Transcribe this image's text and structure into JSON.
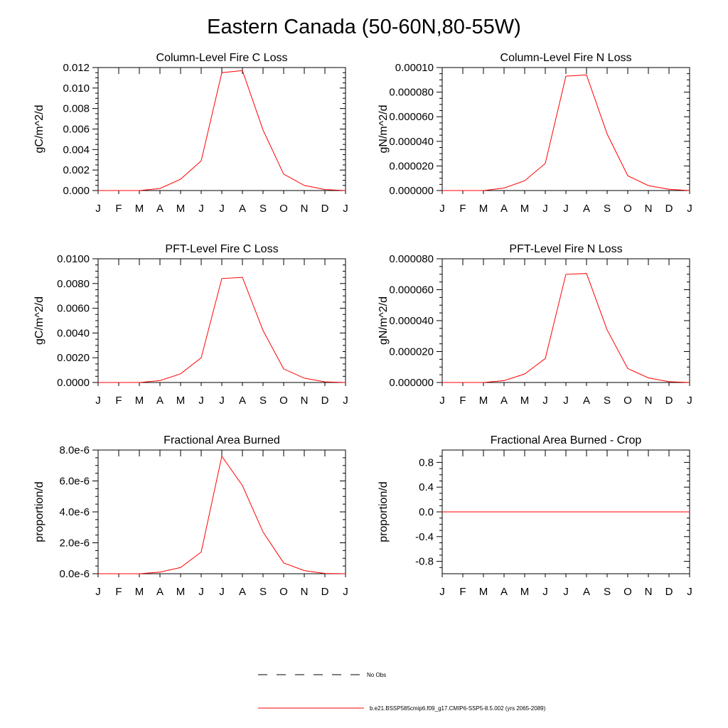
{
  "title": "Eastern Canada (50-60N,80-55W)",
  "months": [
    "J",
    "F",
    "M",
    "A",
    "M",
    "J",
    "J",
    "A",
    "S",
    "O",
    "N",
    "D",
    "J"
  ],
  "legend": [
    {
      "label": "No Obs",
      "style": "dashed",
      "color": "#000000"
    },
    {
      "label": "b.e21.BSSP585cmip6.f09_g17.CMIP6-SSP5-8.5.002 (yrs 2065-2089)",
      "style": "solid",
      "color": "#ff0000"
    }
  ],
  "chart_data": [
    {
      "type": "line",
      "title": "Column-Level Fire C Loss",
      "ylabel": "gC/m^2/d",
      "ylim": [
        0,
        0.012
      ],
      "yticks": [
        0,
        0.002,
        0.004,
        0.006,
        0.008,
        0.01,
        0.012
      ],
      "ytick_labels": [
        "0.000",
        "0.002",
        "0.004",
        "0.006",
        "0.008",
        "0.010",
        "0.012"
      ],
      "categories": [
        "J",
        "F",
        "M",
        "A",
        "M",
        "J",
        "J",
        "A",
        "S",
        "O",
        "N",
        "D",
        "J"
      ],
      "series": [
        {
          "color": "#ff0000",
          "values": [
            0,
            0,
            0,
            0.0002,
            0.0011,
            0.0029,
            0.0115,
            0.0117,
            0.0059,
            0.0016,
            0.0005,
            0.0001,
            0
          ]
        }
      ]
    },
    {
      "type": "line",
      "title": "Column-Level Fire N Loss",
      "ylabel": "gN/m^2/d",
      "ylim": [
        0,
        0.0001
      ],
      "yticks": [
        0,
        2e-05,
        4e-05,
        6e-05,
        8e-05,
        0.0001
      ],
      "ytick_labels": [
        "0.000000",
        "0.000020",
        "0.000040",
        "0.000060",
        "0.000080",
        "0.00010"
      ],
      "categories": [
        "J",
        "F",
        "M",
        "A",
        "M",
        "J",
        "J",
        "A",
        "S",
        "O",
        "N",
        "D",
        "J"
      ],
      "series": [
        {
          "color": "#ff0000",
          "values": [
            0,
            0,
            0,
            2e-06,
            8e-06,
            2.2e-05,
            9.3e-05,
            9.4e-05,
            4.6e-05,
            1.2e-05,
            4e-06,
            1e-06,
            0
          ]
        }
      ]
    },
    {
      "type": "line",
      "title": "PFT-Level Fire C Loss",
      "ylabel": "gC/m^2/d",
      "ylim": [
        0,
        0.01
      ],
      "yticks": [
        0,
        0.002,
        0.004,
        0.006,
        0.008,
        0.01
      ],
      "ytick_labels": [
        "0.0000",
        "0.0020",
        "0.0040",
        "0.0060",
        "0.0080",
        "0.0100"
      ],
      "categories": [
        "J",
        "F",
        "M",
        "A",
        "M",
        "J",
        "J",
        "A",
        "S",
        "O",
        "N",
        "D",
        "J"
      ],
      "series": [
        {
          "color": "#ff0000",
          "values": [
            0,
            0,
            0,
            0.00015,
            0.0007,
            0.002,
            0.0084,
            0.0085,
            0.0042,
            0.0011,
            0.00035,
            5e-05,
            0
          ]
        }
      ]
    },
    {
      "type": "line",
      "title": "PFT-Level Fire N Loss",
      "ylabel": "gN/m^2/d",
      "ylim": [
        0,
        8e-05
      ],
      "yticks": [
        0,
        2e-05,
        4e-05,
        6e-05,
        8e-05
      ],
      "ytick_labels": [
        "0.000000",
        "0.000020",
        "0.000040",
        "0.000060",
        "0.000080"
      ],
      "categories": [
        "J",
        "F",
        "M",
        "A",
        "M",
        "J",
        "J",
        "A",
        "S",
        "O",
        "N",
        "D",
        "J"
      ],
      "series": [
        {
          "color": "#ff0000",
          "values": [
            0,
            0,
            0,
            1.2e-06,
            5.5e-06,
            1.55e-05,
            7e-05,
            7.05e-05,
            3.4e-05,
            9e-06,
            3e-06,
            5e-07,
            0
          ]
        }
      ]
    },
    {
      "type": "line",
      "title": "Fractional Area Burned",
      "ylabel": "proportion/d",
      "ylim": [
        0,
        8e-06
      ],
      "yticks": [
        0,
        2e-06,
        4e-06,
        6e-06,
        8e-06
      ],
      "ytick_labels": [
        "0.0e-6",
        "2.0e-6",
        "4.0e-6",
        "6.0e-6",
        "8.0e-6"
      ],
      "categories": [
        "J",
        "F",
        "M",
        "A",
        "M",
        "J",
        "J",
        "A",
        "S",
        "O",
        "N",
        "D",
        "J"
      ],
      "series": [
        {
          "color": "#ff0000",
          "values": [
            0,
            0,
            0,
            1e-07,
            4e-07,
            1.4e-06,
            7.6e-06,
            5.7e-06,
            2.7e-06,
            7e-07,
            2e-07,
            2e-08,
            0
          ]
        }
      ]
    },
    {
      "type": "line",
      "title": "Fractional Area Burned - Crop",
      "ylabel": "proportion/d",
      "ylim": [
        -1,
        1
      ],
      "yticks": [
        -0.8,
        -0.4,
        0,
        0.4,
        0.8
      ],
      "ytick_labels": [
        "-0.8",
        "-0.4",
        "0.0",
        "0.4",
        "0.8"
      ],
      "categories": [
        "J",
        "F",
        "M",
        "A",
        "M",
        "J",
        "J",
        "A",
        "S",
        "O",
        "N",
        "D",
        "J"
      ],
      "series": [
        {
          "color": "#ff0000",
          "values": [
            0,
            0,
            0,
            0,
            0,
            0,
            0,
            0,
            0,
            0,
            0,
            0,
            0
          ]
        }
      ]
    }
  ]
}
